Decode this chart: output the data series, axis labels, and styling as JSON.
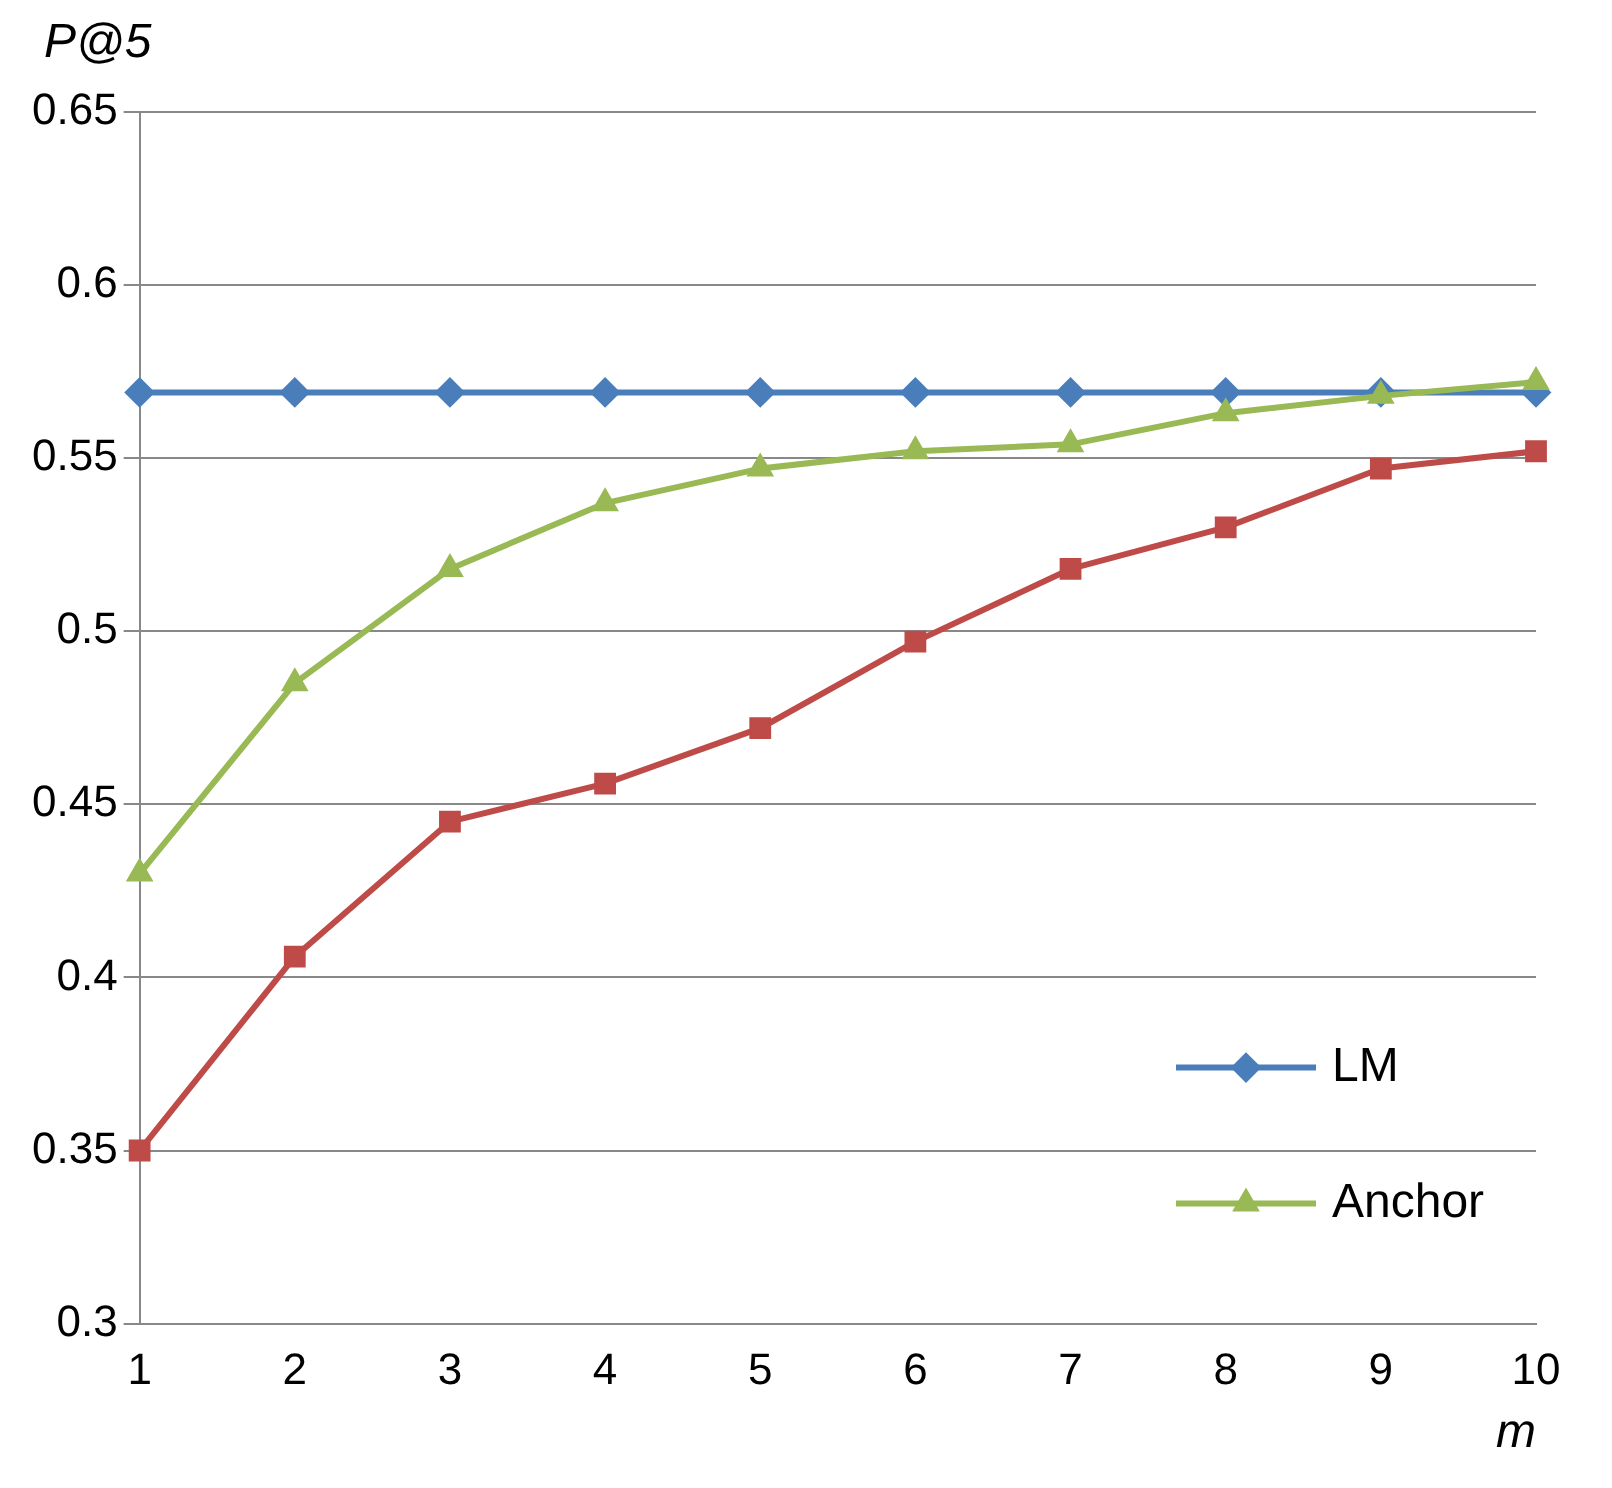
{
  "chart_data": {
    "type": "line",
    "xlabel": "m",
    "ylabel": "P@5",
    "categories": [
      "1",
      "2",
      "3",
      "4",
      "5",
      "6",
      "7",
      "8",
      "9",
      "10"
    ],
    "series": [
      {
        "name": "LM",
        "color": "#4a7ebb",
        "marker": "diamond",
        "values": [
          0.569,
          0.569,
          0.569,
          0.569,
          0.569,
          0.569,
          0.569,
          0.569,
          0.569,
          0.569
        ]
      },
      {
        "color": "#be4b48",
        "marker": "square",
        "values": [
          0.35,
          0.406,
          0.445,
          0.456,
          0.472,
          0.497,
          0.518,
          0.53,
          0.547,
          0.552
        ]
      },
      {
        "name": "Anchor",
        "color": "#98b954",
        "marker": "triangle",
        "values": [
          0.43,
          0.485,
          0.518,
          0.537,
          0.547,
          0.552,
          0.554,
          0.563,
          0.568,
          0.572
        ]
      }
    ],
    "ylim": [
      0.3,
      0.65
    ],
    "yticks": [
      0.3,
      0.35,
      0.4,
      0.45,
      0.5,
      0.55,
      0.6,
      0.65
    ],
    "grid": "y",
    "legend": "bottom right"
  }
}
